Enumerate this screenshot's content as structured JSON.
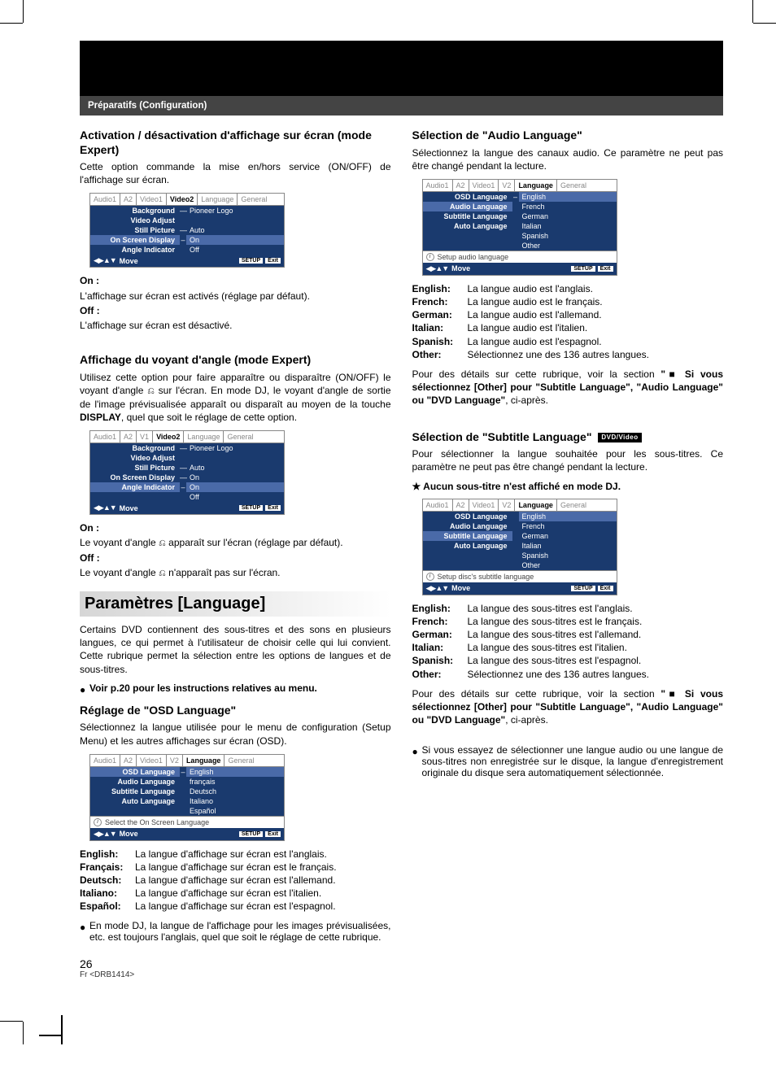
{
  "header": {
    "breadcrumb": "Préparatifs (Configuration)"
  },
  "colors": {
    "menu_blue": "#1a3a6e",
    "menu_hl": "#4a6aa8",
    "header_bar": "#444444"
  },
  "left": {
    "sec1": {
      "title": "Activation / désactivation d'affichage sur écran (mode Expert)",
      "intro": "Cette option commande la mise en/hors service (ON/OFF) de l'affichage sur écran.",
      "menu": {
        "tabs": [
          "Audio1",
          "A2",
          "Video1",
          "Video2",
          "Language",
          "General"
        ],
        "active_tab": 3,
        "rows": [
          {
            "label": "Background",
            "dash": "—",
            "value": "Pioneer Logo"
          },
          {
            "label": "Video Adjust",
            "dash": "",
            "value": ""
          },
          {
            "label": "Still Picture",
            "dash": "—",
            "value": "Auto"
          },
          {
            "label": "On Screen Display",
            "dash": "–",
            "value": "On",
            "hl": true,
            "hlval": true
          },
          {
            "label": "Angle Indicator",
            "dash": "",
            "value": "Off"
          }
        ],
        "footer": {
          "move": "Move",
          "setup": "SETUP",
          "exit": "Exit"
        }
      },
      "on_label": "On :",
      "on_text": "L'affichage sur écran est activés (réglage par défaut).",
      "off_label": "Off :",
      "off_text": "L'affichage sur écran est désactivé."
    },
    "sec2": {
      "title": "Affichage du voyant d'angle (mode Expert)",
      "intro_a": "Utilisez cette option pour faire apparaître ou disparaître (ON/OFF) le voyant d'angle ",
      "intro_b": " sur l'écran. En mode DJ, le voyant d'angle de sortie de l'image prévisualisée apparaît ou disparaît au moyen de la touche ",
      "display": "DISPLAY",
      "intro_c": ", quel que soit le réglage de cette option.",
      "menu": {
        "tabs": [
          "Audio1",
          "A2",
          "V1",
          "Video2",
          "Language",
          "General"
        ],
        "active_tab": 3,
        "rows": [
          {
            "label": "Background",
            "dash": "—",
            "value": "Pioneer Logo"
          },
          {
            "label": "Video Adjust",
            "dash": "",
            "value": ""
          },
          {
            "label": "Still Picture",
            "dash": "—",
            "value": "Auto"
          },
          {
            "label": "On Screen Display",
            "dash": "—",
            "value": "On"
          },
          {
            "label": "Angle Indicator",
            "dash": "–",
            "value": "On",
            "hl": true,
            "hlval": true
          },
          {
            "label": "",
            "dash": "",
            "value": "Off"
          }
        ],
        "footer": {
          "move": "Move",
          "setup": "SETUP",
          "exit": "Exit"
        }
      },
      "on_label": "On :",
      "on_text_a": "Le voyant d'angle ",
      "on_text_b": " apparaît sur l'écran (réglage par défaut).",
      "off_label": "Off :",
      "off_text_a": "Le voyant d'angle ",
      "off_text_b": " n'apparaît pas sur l'écran."
    },
    "lang_header": "Paramètres [Language]",
    "lang_intro": "Certains DVD contiennent des sous-titres et des sons en plusieurs langues, ce qui permet à l'utilisateur de choisir celle qui lui convient.  Cette rubrique permet la sélection entre les options de langues et de sous-titres.",
    "lang_note": "Voir p.20 pour les instructions relatives au menu.",
    "osd": {
      "title": "Réglage de \"OSD Language\"",
      "intro": "Sélectionnez la langue utilisée pour le menu de configuration (Setup Menu) et les autres affichages sur écran (OSD).",
      "menu": {
        "tabs": [
          "Audio1",
          "A2",
          "Video1",
          "V2",
          "Language",
          "General"
        ],
        "active_tab": 4,
        "rows": [
          {
            "label": "OSD Language",
            "dash": "–",
            "value": "English",
            "hl": true,
            "hlval": true
          },
          {
            "label": "Audio Language",
            "dash": "",
            "value": "français"
          },
          {
            "label": "Subtitle Language",
            "dash": "",
            "value": "Deutsch"
          },
          {
            "label": "Auto Language",
            "dash": "",
            "value": "Italiano"
          },
          {
            "label": "",
            "dash": "",
            "value": "Español"
          }
        ],
        "info": "Select the On Screen Language",
        "footer": {
          "move": "Move",
          "setup": "SETUP",
          "exit": "Exit"
        }
      },
      "defs": [
        {
          "k": "English:",
          "v": "La langue d'affichage sur écran est l'anglais."
        },
        {
          "k": "Français:",
          "v": "La langue d'affichage sur écran est le français."
        },
        {
          "k": "Deutsch:",
          "v": "La langue d'affichage sur écran est l'allemand."
        },
        {
          "k": "Italiano:",
          "v": "La langue d'affichage sur écran est l'italien."
        },
        {
          "k": "Español:",
          "v": "La langue d'affichage sur écran est l'espagnol."
        }
      ],
      "bullet": "En mode DJ, la langue de l'affichage pour les images prévisualisées, etc. est toujours l'anglais, quel que soit le réglage de cette rubrique."
    }
  },
  "right": {
    "audio": {
      "title": "Sélection de \"Audio Language\"",
      "intro": "Sélectionnez la langue des canaux audio. Ce paramètre ne peut pas être changé pendant la lecture.",
      "menu": {
        "tabs": [
          "Audio1",
          "A2",
          "Video1",
          "V2",
          "Language",
          "General"
        ],
        "active_tab": 4,
        "rows": [
          {
            "label": "OSD Language",
            "dash": "–",
            "value": "English",
            "hlval": true
          },
          {
            "label": "Audio Language",
            "dash": "",
            "value": "French",
            "hl": true
          },
          {
            "label": "Subtitle Language",
            "dash": "",
            "value": "German"
          },
          {
            "label": "Auto Language",
            "dash": "",
            "value": "Italian"
          },
          {
            "label": "",
            "dash": "",
            "value": "Spanish"
          },
          {
            "label": "",
            "dash": "",
            "value": "Other"
          }
        ],
        "info": "Setup audio language",
        "footer": {
          "move": "Move",
          "setup": "SETUP",
          "exit": "Exit"
        }
      },
      "defs": [
        {
          "k": "English:",
          "v": "La langue audio est l'anglais."
        },
        {
          "k": "French:",
          "v": "La langue audio est le français."
        },
        {
          "k": "German:",
          "v": "La langue audio est l'allemand."
        },
        {
          "k": "Italian:",
          "v": "La langue audio est l'italien."
        },
        {
          "k": "Spanish:",
          "v": "La langue audio est l'espagnol."
        },
        {
          "k": "Other:",
          "v": "Sélectionnez une des 136 autres langues."
        }
      ],
      "detail_a": "Pour des détails sur cette rubrique, voir la section ",
      "detail_b": "\"■ Si vous sélectionnez [Other] pour \"Subtitle Language\", \"Audio Language\" ou \"DVD Language\"",
      "detail_c": ", ci-après."
    },
    "subtitle": {
      "title": "Sélection de \"Subtitle Language\"",
      "badge": "DVD/Video",
      "intro": "Pour sélectionner la langue souhaitée pour les sous-titres. Ce paramètre ne peut pas être changé pendant la lecture.",
      "star": "★ Aucun sous-titre n'est affiché en mode DJ.",
      "menu": {
        "tabs": [
          "Audio1",
          "A2",
          "Video1",
          "V2",
          "Language",
          "General"
        ],
        "active_tab": 4,
        "rows": [
          {
            "label": "OSD Language",
            "dash": "",
            "value": "English",
            "hlval": true
          },
          {
            "label": "Audio Language",
            "dash": "",
            "value": "French"
          },
          {
            "label": "Subtitle Language",
            "dash": "",
            "value": "German",
            "hl": true
          },
          {
            "label": "Auto Language",
            "dash": "",
            "value": "Italian"
          },
          {
            "label": "",
            "dash": "",
            "value": "Spanish"
          },
          {
            "label": "",
            "dash": "",
            "value": "Other"
          }
        ],
        "info": "Setup disc's subtitle language",
        "footer": {
          "move": "Move",
          "setup": "SETUP",
          "exit": "Exit"
        }
      },
      "defs": [
        {
          "k": "English:",
          "v": "La langue des sous-titres est l'anglais."
        },
        {
          "k": "French:",
          "v": "La langue des sous-titres est le français."
        },
        {
          "k": "German:",
          "v": "La langue des sous-titres est l'allemand."
        },
        {
          "k": "Italian:",
          "v": "La langue des sous-titres est l'italien."
        },
        {
          "k": "Spanish:",
          "v": "La langue des sous-titres est l'espagnol."
        },
        {
          "k": "Other:",
          "v": "Sélectionnez une des 136 autres langues."
        }
      ],
      "detail_a": "Pour des détails sur cette rubrique, voir la section ",
      "detail_b": "\"■ Si vous sélectionnez [Other] pour \"Subtitle Language\", \"Audio Language\" ou \"DVD Language\"",
      "detail_c": ", ci-après.",
      "bullet": "Si vous essayez de sélectionner une langue audio ou une langue de sous-titres non enregistrée sur le disque, la langue d'enregistrement originale du disque sera automatiquement sélectionnée."
    }
  },
  "footer": {
    "page": "26",
    "ref": "Fr <DRB1414>"
  }
}
